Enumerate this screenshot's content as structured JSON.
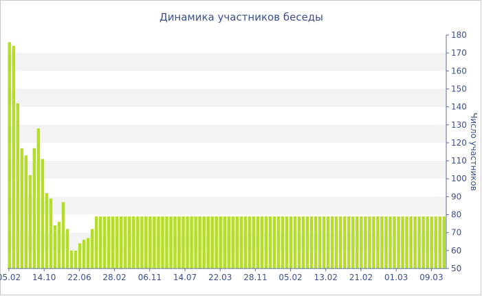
{
  "chart_data": {
    "type": "bar",
    "title": "Динамика участников беседы",
    "ylabel": "Число участников",
    "xlabel": "",
    "ylim": [
      50,
      180
    ],
    "yticks": [
      50,
      60,
      70,
      80,
      90,
      100,
      110,
      120,
      130,
      140,
      150,
      160,
      170,
      180
    ],
    "x_tick_labels": [
      "05.02",
      "14.10",
      "22.06",
      "28.02",
      "06.11",
      "14.07",
      "22.03",
      "28.11",
      "05.02",
      "13.02",
      "21.02",
      "01.03",
      "09.03"
    ],
    "grid": "alternating horizontal bands",
    "bar_color": "#b5de2b",
    "values": [
      176,
      174,
      142,
      117,
      113,
      102,
      117,
      128,
      111,
      92,
      89,
      74,
      76,
      87,
      72,
      60,
      60,
      64,
      66,
      67,
      72,
      79,
      79,
      79,
      79,
      79,
      79,
      79,
      79,
      79,
      79,
      79,
      79,
      79,
      79,
      79,
      79,
      79,
      79,
      79,
      79,
      79,
      79,
      79,
      79,
      79,
      79,
      79,
      79,
      79,
      79,
      79,
      79,
      79,
      79,
      79,
      79,
      79,
      79,
      79,
      79,
      79,
      79,
      79,
      79,
      79,
      79,
      79,
      79,
      79,
      79,
      79,
      79,
      79,
      79,
      79,
      79,
      79,
      79,
      79,
      79,
      79,
      79,
      79,
      79,
      79,
      79,
      79,
      79,
      79,
      79,
      79,
      79,
      79,
      79,
      79,
      79,
      79,
      79,
      79,
      79,
      79,
      79,
      79,
      79,
      79
    ]
  }
}
